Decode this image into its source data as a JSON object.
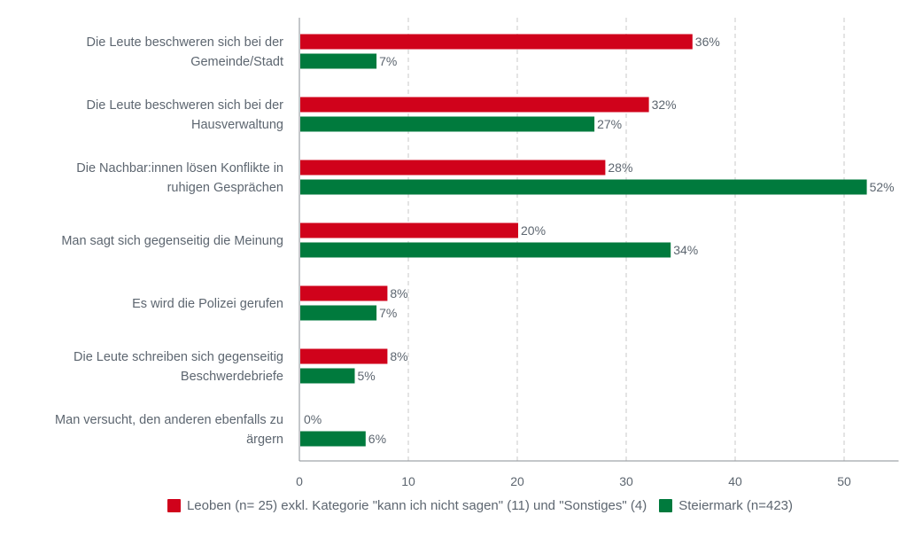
{
  "chart_data": {
    "type": "bar",
    "orientation": "horizontal",
    "categories": [
      [
        "Die Leute beschweren sich bei der",
        "Gemeinde/Stadt"
      ],
      [
        "Die Leute beschweren sich bei der",
        "Hausverwaltung"
      ],
      [
        "Die Nachbar:innen lösen Konflikte in",
        "ruhigen Gesprächen"
      ],
      [
        "Man sagt sich gegenseitig die Meinung"
      ],
      [
        "Es wird die Polizei gerufen"
      ],
      [
        "Die Leute schreiben sich gegenseitig",
        "Beschwerdebriefe"
      ],
      [
        "Man versucht, den anderen ebenfalls zu",
        "ärgern"
      ]
    ],
    "series": [
      {
        "name": "Leoben (n= 25) exkl. Kategorie \"kann ich nicht sagen\" (11) und \"Sonstiges\" (4)",
        "color": "#d0021b",
        "values": [
          36,
          32,
          28,
          20,
          8,
          8,
          0
        ],
        "labels": [
          "36%",
          "32%",
          "28%",
          "20%",
          "8%",
          "8%",
          "0%"
        ]
      },
      {
        "name": "Steiermark (n=423)",
        "color": "#007a3d",
        "values": [
          7,
          27,
          52,
          34,
          7,
          5,
          6
        ],
        "labels": [
          "7%",
          "27%",
          "52%",
          "34%",
          "7%",
          "5%",
          "6%"
        ]
      }
    ],
    "xticks": [
      0,
      10,
      20,
      30,
      40,
      50
    ],
    "xlim": [
      0,
      55
    ],
    "grid": true,
    "legend_position": "bottom",
    "title": "",
    "xlabel": "",
    "ylabel": ""
  }
}
